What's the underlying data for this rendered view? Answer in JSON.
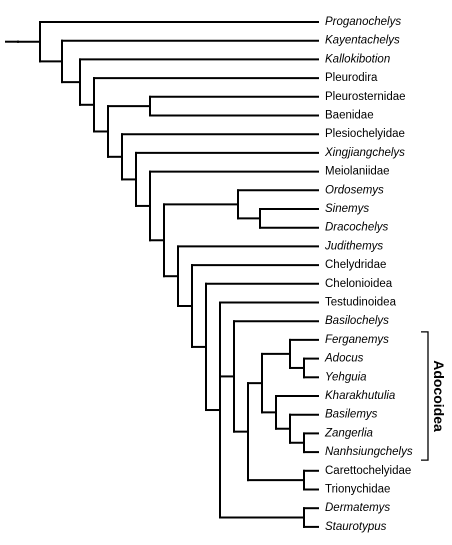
{
  "taxa": [
    {
      "name": "Proganochelys",
      "italic": true
    },
    {
      "name": "Kayentachelys",
      "italic": true
    },
    {
      "name": "Kallokibotion",
      "italic": true
    },
    {
      "name": "Pleurodira",
      "italic": false
    },
    {
      "name": "Pleurosternidae",
      "italic": false
    },
    {
      "name": "Baenidae",
      "italic": false
    },
    {
      "name": "Plesiochelyidae",
      "italic": false
    },
    {
      "name": "Xingjiangchelys",
      "italic": true
    },
    {
      "name": "Meiolaniidae",
      "italic": false
    },
    {
      "name": "Ordosemys",
      "italic": true
    },
    {
      "name": "Sinemys",
      "italic": true
    },
    {
      "name": "Dracochelys",
      "italic": true
    },
    {
      "name": "Judithemys",
      "italic": true
    },
    {
      "name": "Chelydridae",
      "italic": false
    },
    {
      "name": "Chelonioidea",
      "italic": false
    },
    {
      "name": "Testudinoidea",
      "italic": false
    },
    {
      "name": "Basilochelys",
      "italic": true
    },
    {
      "name": "Ferganemys",
      "italic": true
    },
    {
      "name": "Adocus",
      "italic": true
    },
    {
      "name": "Yehguia",
      "italic": true
    },
    {
      "name": "Kharakhutulia",
      "italic": true
    },
    {
      "name": "Basilemys",
      "italic": true
    },
    {
      "name": "Zangerlia",
      "italic": true
    },
    {
      "name": "Nanhsiungchelys",
      "italic": true
    },
    {
      "name": "Carettochelyidae",
      "italic": false
    },
    {
      "name": "Trionychidae",
      "italic": false
    },
    {
      "name": "Dermatemys",
      "italic": true
    },
    {
      "name": "Staurotypus",
      "italic": true
    }
  ],
  "tree": [
    [
      0,
      [
        1,
        [
          2,
          [
            3,
            [
              [
                4,
                5
              ],
              [
                6,
                [
                  7,
                  [
                    8,
                    [
                      [
                        9,
                        [
                          10,
                          11
                        ]
                      ],
                      [
                        12,
                        [
                          13,
                          [
                            14,
                            [
                              15,
                              [
                                16,
                                [
                                  [
                                    [
                                      17,
                                      [
                                        18,
                                        19
                                      ]
                                    ],
                                    [
                                      20,
                                      [
                                        21,
                                        [
                                          22,
                                          23
                                        ]
                                      ]
                                    ]
                                  ],
                                  [
                                    24,
                                    25
                                  ]
                                ]
                              ],
                              [
                                26,
                                27
                              ]
                            ]
                          ]
                        ]
                      ]
                    ]
                  ]
                ]
              ]
            ]
          ]
        ]
      ]
    ]
  ],
  "clade_bracket": {
    "label": "Adocoidea",
    "from": "Ferganemys",
    "to": "Nanhsiungchelys"
  }
}
